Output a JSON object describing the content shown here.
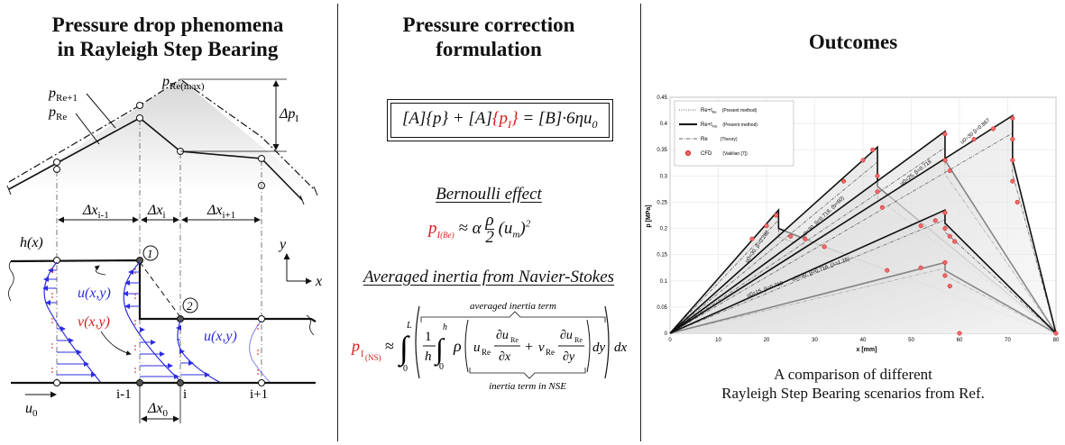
{
  "panels": {
    "left": {
      "title_line1": "Pressure drop phenomena",
      "title_line2": "in Rayleigh Step Bearing"
    },
    "middle": {
      "title_line1": "Pressure correction",
      "title_line2": "formulation",
      "bernoulli_title": "Bernoulli  effect",
      "navier_title": "Averaged inertia from Navier-Stokes",
      "averaged_inertia_term": "averaged inertia term",
      "inertia_term_nse": "inertia term in NSE"
    },
    "right": {
      "title": "Outcomes",
      "caption_line1": "A comparison of different",
      "caption_line2": "Rayleigh Step Bearing scenarios from Ref."
    }
  },
  "diagram_labels": {
    "p_re_plus1": "p",
    "p_re_plus1_sub": "Re+1",
    "p_re": "p",
    "p_re_sub": "Re",
    "p_re_max": "p",
    "p_re_max_sub": "Re(max)",
    "delta_p1": "Δp",
    "delta_p1_sub": "I",
    "dx_im1": "Δx",
    "dx_im1_sub": "i-1",
    "dx_i": "Δx",
    "dx_i_sub": "i",
    "dx_ip1": "Δx",
    "dx_ip1_sub": "i+1",
    "hx": "h(x)",
    "y_axis": "y",
    "x_axis": "x",
    "circle1": "1",
    "circle2": "2",
    "u_xy_1": "u(x,y)",
    "v_xy": "v(x,y)",
    "u_xy_2": "u(x,y)",
    "u0": "u",
    "u0_sub": "0",
    "node_im1": "i-1",
    "node_i": "i",
    "node_ip1": "i+1",
    "dx0": "Δx",
    "dx0_sub": "0"
  },
  "chart_data": {
    "type": "line",
    "xlabel": "x [mm]",
    "ylabel": "p [MPa]",
    "xlim": [
      0,
      80
    ],
    "ylim": [
      0,
      0.45
    ],
    "xticks": [
      0,
      10,
      20,
      30,
      40,
      50,
      60,
      70,
      80
    ],
    "yticks": [
      0,
      0.05,
      0.1,
      0.15,
      0.2,
      0.25,
      0.3,
      0.35,
      0.4,
      0.45
    ],
    "grid": true,
    "legend_position": "top-left",
    "legend": [
      {
        "name": "Re+I",
        "sub": "Be",
        "note": "(Present method)",
        "style": "dotted"
      },
      {
        "name": "Re+I",
        "sub": "NS",
        "note": "(Present method)",
        "style": "bold"
      },
      {
        "name": "Re",
        "sub": "",
        "note": "(Theory)",
        "style": "dashdot"
      },
      {
        "name": "CFD",
        "sub": "",
        "note": "(Vakilian [7])",
        "style": "marker"
      }
    ],
    "annotations": [
      "u0=30, β=0.282",
      "u0=30, β=0.718, (b=60)",
      "u0=25, β=0.718",
      "u0=30 β=0.887",
      "u0=15, β=0.718",
      "u0=30, β=0.718, (λ=1.25)"
    ],
    "series": [
      {
        "x": [
          0,
          22.5,
          22.5,
          32,
          80
        ],
        "y": [
          0,
          0.235,
          0.2,
          0.165,
          0
        ]
      },
      {
        "x": [
          0,
          43,
          43,
          80
        ],
        "y": [
          0,
          0.355,
          0.28,
          0
        ]
      },
      {
        "x": [
          0,
          57,
          57,
          80
        ],
        "y": [
          0,
          0.385,
          0.33,
          0
        ]
      },
      {
        "x": [
          0,
          71,
          71,
          80
        ],
        "y": [
          0,
          0.415,
          0.33,
          0
        ]
      },
      {
        "x": [
          0,
          57,
          57,
          80
        ],
        "y": [
          0,
          0.135,
          0.12,
          0
        ]
      },
      {
        "x": [
          0,
          57,
          57,
          80
        ],
        "y": [
          0,
          0.235,
          0.21,
          0
        ]
      }
    ],
    "cfd_points": [
      {
        "x": 17,
        "y": 0.18
      },
      {
        "x": 20,
        "y": 0.205
      },
      {
        "x": 22,
        "y": 0.225
      },
      {
        "x": 25,
        "y": 0.185
      },
      {
        "x": 28,
        "y": 0.18
      },
      {
        "x": 32,
        "y": 0.165
      },
      {
        "x": 36,
        "y": 0.29
      },
      {
        "x": 40,
        "y": 0.33
      },
      {
        "x": 42,
        "y": 0.35
      },
      {
        "x": 43,
        "y": 0.3
      },
      {
        "x": 43,
        "y": 0.27
      },
      {
        "x": 44,
        "y": 0.24
      },
      {
        "x": 45,
        "y": 0.12
      },
      {
        "x": 52,
        "y": 0.205
      },
      {
        "x": 55,
        "y": 0.215
      },
      {
        "x": 57,
        "y": 0.23
      },
      {
        "x": 57,
        "y": 0.2
      },
      {
        "x": 58,
        "y": 0.185
      },
      {
        "x": 59,
        "y": 0.175
      },
      {
        "x": 52,
        "y": 0.125
      },
      {
        "x": 57,
        "y": 0.135
      },
      {
        "x": 57,
        "y": 0.11
      },
      {
        "x": 58,
        "y": 0.09
      },
      {
        "x": 57,
        "y": 0.38
      },
      {
        "x": 57,
        "y": 0.33
      },
      {
        "x": 58,
        "y": 0.31
      },
      {
        "x": 63,
        "y": 0.37
      },
      {
        "x": 67,
        "y": 0.39
      },
      {
        "x": 71,
        "y": 0.41
      },
      {
        "x": 71,
        "y": 0.37
      },
      {
        "x": 71,
        "y": 0.33
      },
      {
        "x": 71,
        "y": 0.29
      },
      {
        "x": 72,
        "y": 0.25
      },
      {
        "x": 60,
        "y": 0.0
      },
      {
        "x": 80,
        "y": 0.0
      }
    ]
  }
}
